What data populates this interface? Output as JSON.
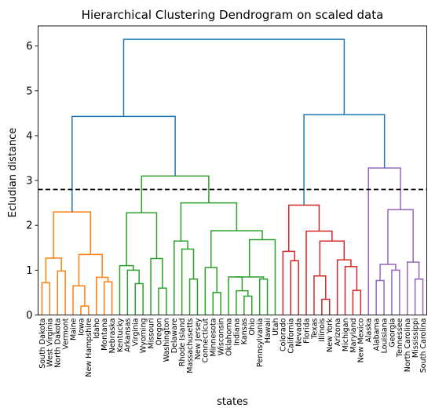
{
  "chart_data": {
    "type": "dendrogram",
    "title": "Hierarchical Clustering Dendrogram on scaled data",
    "xlabel": "states",
    "ylabel": "Ecludian distance",
    "ylim": [
      0,
      6.45
    ],
    "yticks": [
      0,
      1,
      2,
      3,
      4,
      5,
      6
    ],
    "threshold": 2.8,
    "threshold_style": "dashed black line",
    "leaves": [
      "South Dakota",
      "West Virginia",
      "North Dakota",
      "Vermont",
      "Maine",
      "Iowa",
      "New Hampshire",
      "Idaho",
      "Montana",
      "Nebraska",
      "Kentucky",
      "Arkansas",
      "Virginia",
      "Wyoming",
      "Missouri",
      "Oregon",
      "Washington",
      "Delaware",
      "Rhode Island",
      "Massachusetts",
      "New Jersey",
      "Connecticut",
      "Minnesota",
      "Wisconsin",
      "Oklahoma",
      "Indiana",
      "Kansas",
      "Ohio",
      "Pennsylvania",
      "Hawaii",
      "Utah",
      "Colorado",
      "California",
      "Nevada",
      "Florida",
      "Texas",
      "Illinois",
      "New York",
      "Arizona",
      "Michigan",
      "Maryland",
      "New Mexico",
      "Alaska",
      "Alabama",
      "Louisiana",
      "Georgia",
      "Tennessee",
      "North Carolina",
      "Mississippi",
      "South Carolina"
    ],
    "link_colors": {
      "cluster_1": "#ff7f0e",
      "cluster_2": "#2ca02c",
      "cluster_3": "#d62728",
      "cluster_4": "#9467bd",
      "above_threshold": "#1f77b4"
    },
    "merges": [
      {
        "id": "o1",
        "left": "L0",
        "right": "L1",
        "height": 0.72,
        "color": "cluster_1"
      },
      {
        "id": "o2",
        "left": "L2",
        "right": "L3",
        "height": 0.98,
        "color": "cluster_1"
      },
      {
        "id": "o3",
        "left": "o1",
        "right": "o2",
        "height": 1.27,
        "color": "cluster_1"
      },
      {
        "id": "o4",
        "left": "L5",
        "right": "L6",
        "height": 0.2,
        "color": "cluster_1"
      },
      {
        "id": "o5",
        "left": "L4",
        "right": "o4",
        "height": 0.65,
        "color": "cluster_1"
      },
      {
        "id": "o6",
        "left": "L8",
        "right": "L9",
        "height": 0.74,
        "color": "cluster_1"
      },
      {
        "id": "o7",
        "left": "L7",
        "right": "o6",
        "height": 0.84,
        "color": "cluster_1"
      },
      {
        "id": "o8",
        "left": "o5",
        "right": "o7",
        "height": 1.35,
        "color": "cluster_1"
      },
      {
        "id": "o9",
        "left": "o3",
        "right": "o8",
        "height": 2.3,
        "color": "cluster_1"
      },
      {
        "id": "g1",
        "left": "L12",
        "right": "L13",
        "height": 0.7,
        "color": "cluster_2"
      },
      {
        "id": "g2",
        "left": "L11",
        "right": "g1",
        "height": 1.0,
        "color": "cluster_2"
      },
      {
        "id": "g3",
        "left": "L10",
        "right": "g2",
        "height": 1.1,
        "color": "cluster_2"
      },
      {
        "id": "g4",
        "left": "L15",
        "right": "L16",
        "height": 0.6,
        "color": "cluster_2"
      },
      {
        "id": "g5",
        "left": "L14",
        "right": "g4",
        "height": 1.26,
        "color": "cluster_2"
      },
      {
        "id": "g6",
        "left": "g3",
        "right": "g5",
        "height": 2.28,
        "color": "cluster_2"
      },
      {
        "id": "g7",
        "left": "L19",
        "right": "L20",
        "height": 0.8,
        "color": "cluster_2"
      },
      {
        "id": "g8",
        "left": "L18",
        "right": "g7",
        "height": 1.47,
        "color": "cluster_2"
      },
      {
        "id": "g9",
        "left": "L17",
        "right": "g8",
        "height": 1.65,
        "color": "cluster_2"
      },
      {
        "id": "g10",
        "left": "L22",
        "right": "L23",
        "height": 0.5,
        "color": "cluster_2"
      },
      {
        "id": "g11",
        "left": "L21",
        "right": "g10",
        "height": 1.06,
        "color": "cluster_2"
      },
      {
        "id": "g12",
        "left": "L26",
        "right": "L27",
        "height": 0.42,
        "color": "cluster_2"
      },
      {
        "id": "g13",
        "left": "L25",
        "right": "g12",
        "height": 0.54,
        "color": "cluster_2"
      },
      {
        "id": "g14",
        "left": "L24",
        "right": "g13",
        "height": 0.85,
        "color": "cluster_2"
      },
      {
        "id": "g15",
        "left": "L28",
        "right": "L29",
        "height": 0.8,
        "color": "cluster_2"
      },
      {
        "id": "g16",
        "left": "g14",
        "right": "g15",
        "height": 0.85,
        "color": "cluster_2"
      },
      {
        "id": "g17",
        "left": "g16",
        "right": "L30",
        "height": 1.68,
        "color": "cluster_2"
      },
      {
        "id": "g18",
        "left": "g11",
        "right": "g17",
        "height": 1.88,
        "color": "cluster_2"
      },
      {
        "id": "g19",
        "left": "g9",
        "right": "g18",
        "height": 2.5,
        "color": "cluster_2"
      },
      {
        "id": "g20",
        "left": "g6",
        "right": "g19",
        "height": 3.1,
        "color": "cluster_2"
      },
      {
        "id": "r1",
        "left": "L32",
        "right": "L33",
        "height": 1.21,
        "color": "cluster_3"
      },
      {
        "id": "r2",
        "left": "L31",
        "right": "r1",
        "height": 1.42,
        "color": "cluster_3"
      },
      {
        "id": "r3",
        "left": "L36",
        "right": "L37",
        "height": 0.35,
        "color": "cluster_3"
      },
      {
        "id": "r4",
        "left": "L35",
        "right": "r3",
        "height": 0.87,
        "color": "cluster_3"
      },
      {
        "id": "r5",
        "left": "L40",
        "right": "L41",
        "height": 0.55,
        "color": "cluster_3"
      },
      {
        "id": "r6",
        "left": "L39",
        "right": "r5",
        "height": 1.08,
        "color": "cluster_3"
      },
      {
        "id": "r7",
        "left": "L38",
        "right": "r6",
        "height": 1.23,
        "color": "cluster_3"
      },
      {
        "id": "r8",
        "left": "r4",
        "right": "r7",
        "height": 1.65,
        "color": "cluster_3"
      },
      {
        "id": "r9",
        "left": "L34",
        "right": "r8",
        "height": 1.87,
        "color": "cluster_3"
      },
      {
        "id": "r10",
        "left": "r2",
        "right": "r9",
        "height": 2.45,
        "color": "cluster_3"
      },
      {
        "id": "p1",
        "left": "L43",
        "right": "L44",
        "height": 0.77,
        "color": "cluster_4"
      },
      {
        "id": "p2",
        "left": "L45",
        "right": "L46",
        "height": 1.0,
        "color": "cluster_4"
      },
      {
        "id": "p3",
        "left": "p1",
        "right": "p2",
        "height": 1.13,
        "color": "cluster_4"
      },
      {
        "id": "p4",
        "left": "L48",
        "right": "L49",
        "height": 0.8,
        "color": "cluster_4"
      },
      {
        "id": "p5",
        "left": "L47",
        "right": "p4",
        "height": 1.18,
        "color": "cluster_4"
      },
      {
        "id": "p6",
        "left": "p3",
        "right": "p5",
        "height": 2.35,
        "color": "cluster_4"
      },
      {
        "id": "p7",
        "left": "L42",
        "right": "p6",
        "height": 3.28,
        "color": "cluster_4"
      },
      {
        "id": "b1",
        "left": "o9",
        "right": "g20",
        "height": 4.43,
        "color": "above_threshold"
      },
      {
        "id": "b2",
        "left": "r10",
        "right": "p7",
        "height": 4.47,
        "color": "above_threshold"
      },
      {
        "id": "b3",
        "left": "b1",
        "right": "b2",
        "height": 6.15,
        "color": "above_threshold"
      }
    ]
  }
}
